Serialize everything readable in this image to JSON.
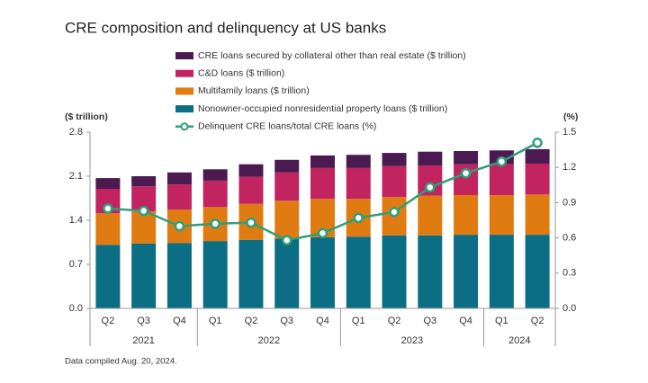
{
  "chart_data": {
    "type": "stacked-bar-line",
    "title": "CRE composition and delinquency at US banks",
    "y_label": "($ trillion)",
    "y2_label": "(%)",
    "note": "Data compiled Aug. 20, 2024.",
    "categories": [
      "Q2",
      "Q3",
      "Q4",
      "Q1",
      "Q2",
      "Q3",
      "Q4",
      "Q1",
      "Q2",
      "Q3",
      "Q4",
      "Q1",
      "Q2"
    ],
    "category_groups": [
      {
        "label": "2021",
        "count": 3
      },
      {
        "label": "2022",
        "count": 4
      },
      {
        "label": "2023",
        "count": 4
      },
      {
        "label": "2024",
        "count": 2
      }
    ],
    "ylim": [
      0,
      2.8
    ],
    "yticks": [
      {
        "value": 0,
        "label": "0.0"
      },
      0.7,
      1.4,
      2.1,
      2.8
    ],
    "y2lim": [
      0,
      1.5
    ],
    "y2ticks": [
      {
        "value": 0,
        "label": "0.0"
      },
      0.3,
      0.6,
      0.9,
      1.2,
      1.5
    ],
    "series": [
      {
        "name": "Nonowner-occupied nonresidential property loans ($ trillion)",
        "color": "#0b6e84",
        "values": [
          1.01,
          1.03,
          1.04,
          1.07,
          1.09,
          1.11,
          1.13,
          1.14,
          1.16,
          1.16,
          1.17,
          1.17,
          1.17
        ]
      },
      {
        "name": "Multifamily loans ($ trillion)",
        "color": "#e07b12",
        "values": [
          0.5,
          0.51,
          0.53,
          0.54,
          0.57,
          0.6,
          0.61,
          0.6,
          0.61,
          0.63,
          0.63,
          0.63,
          0.64
        ]
      },
      {
        "name": "C&D loans ($ trillion)",
        "color": "#c2245f",
        "values": [
          0.39,
          0.4,
          0.4,
          0.42,
          0.43,
          0.45,
          0.49,
          0.49,
          0.49,
          0.48,
          0.49,
          0.49,
          0.49
        ]
      },
      {
        "name": "CRE loans secured by collateral other than real estate ($ trillion)",
        "color": "#4b1a50",
        "values": [
          0.17,
          0.16,
          0.19,
          0.18,
          0.2,
          0.2,
          0.2,
          0.21,
          0.21,
          0.22,
          0.21,
          0.22,
          0.23
        ]
      },
      {
        "name": "Delinquent CRE loans/total CRE loans (%)",
        "color": "#2f9e7a",
        "axis": "y2",
        "type": "line",
        "values": [
          0.85,
          0.83,
          0.7,
          0.72,
          0.73,
          0.58,
          0.64,
          0.77,
          0.82,
          1.03,
          1.15,
          1.25,
          1.41
        ]
      }
    ]
  }
}
